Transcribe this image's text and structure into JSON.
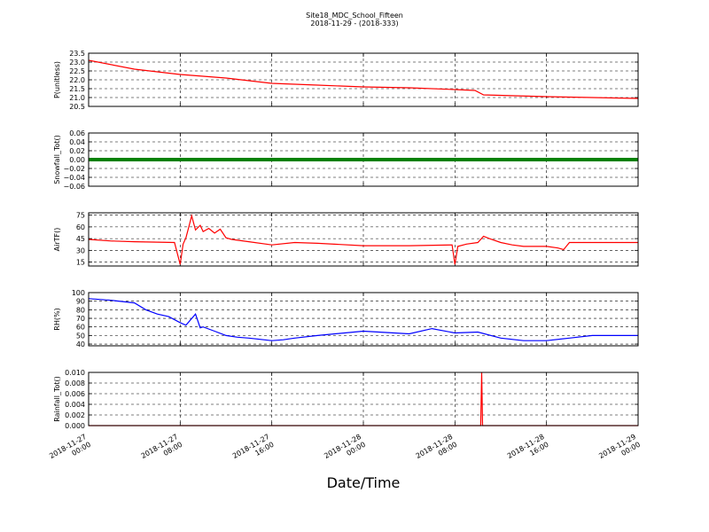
{
  "figure": {
    "title_line1": "Site18_MDC_School_Fifteen",
    "title_line2": "2018-11-29 - (2018-333)",
    "xlabel": "Date/Time"
  },
  "chart_data": [
    {
      "type": "line",
      "ylabel": "P(unitless)",
      "ylim": [
        20.5,
        23.5
      ],
      "yticks": [
        "23.5",
        "23.0",
        "22.5",
        "22.0",
        "21.5",
        "21.0",
        "20.5"
      ],
      "grid": true,
      "color": "#ff0000",
      "x": [
        "2018-11-27 00:00",
        "2018-11-27 04:00",
        "2018-11-27 08:00",
        "2018-11-27 12:00",
        "2018-11-27 16:00",
        "2018-11-27 20:00",
        "2018-11-28 00:00",
        "2018-11-28 04:00",
        "2018-11-28 08:00",
        "2018-11-28 09:45",
        "2018-11-28 10:30",
        "2018-11-28 16:00",
        "2018-11-28 20:00",
        "2018-11-29 00:00"
      ],
      "y": [
        23.1,
        22.6,
        22.3,
        22.1,
        21.8,
        21.7,
        21.6,
        21.55,
        21.45,
        21.4,
        21.15,
        21.05,
        21.0,
        20.95
      ]
    },
    {
      "type": "line",
      "ylabel": "Snowfall_Tot()",
      "ylim": [
        -0.06,
        0.06
      ],
      "yticks": [
        "0.06",
        "0.04",
        "0.02",
        "0.00",
        "−0.02",
        "−0.04",
        "−0.06"
      ],
      "grid": true,
      "color": "#008000",
      "x": [
        "2018-11-27 00:00",
        "2018-11-29 00:00"
      ],
      "y": [
        0.0,
        0.0
      ]
    },
    {
      "type": "line",
      "ylabel": "AirTF()",
      "ylim": [
        10,
        78
      ],
      "yticks": [
        "75",
        "60",
        "45",
        "30",
        "15"
      ],
      "grid": true,
      "color": "#ff0000",
      "x": [
        "2018-11-27 00:00",
        "2018-11-27 02:00",
        "2018-11-27 04:00",
        "2018-11-27 07:30",
        "2018-11-27 08:00",
        "2018-11-27 08:15",
        "2018-11-27 08:30",
        "2018-11-27 09:00",
        "2018-11-27 09:20",
        "2018-11-27 09:45",
        "2018-11-27 10:00",
        "2018-11-27 10:30",
        "2018-11-27 11:00",
        "2018-11-27 11:30",
        "2018-11-27 12:00",
        "2018-11-27 12:30",
        "2018-11-27 13:00",
        "2018-11-27 14:00",
        "2018-11-27 16:00",
        "2018-11-27 18:00",
        "2018-11-27 20:00",
        "2018-11-28 00:00",
        "2018-11-28 04:00",
        "2018-11-28 07:45",
        "2018-11-28 08:00",
        "2018-11-28 08:15",
        "2018-11-28 09:00",
        "2018-11-28 10:00",
        "2018-11-28 10:30",
        "2018-11-28 11:00",
        "2018-11-28 12:00",
        "2018-11-28 13:00",
        "2018-11-28 14:00",
        "2018-11-28 16:00",
        "2018-11-28 17:00",
        "2018-11-28 17:30",
        "2018-11-28 18:00",
        "2018-11-28 20:00",
        "2018-11-29 00:00"
      ],
      "y": [
        44,
        42,
        41,
        40,
        12,
        38,
        46,
        74,
        56,
        62,
        54,
        58,
        52,
        57,
        46,
        44,
        43,
        41,
        37,
        40,
        39,
        36,
        36,
        37,
        12,
        35,
        38,
        40,
        48,
        45,
        40,
        37,
        35,
        35,
        33,
        31,
        40,
        40,
        40
      ]
    },
    {
      "type": "line",
      "ylabel": "RH(%)",
      "ylim": [
        38,
        100
      ],
      "yticks": [
        "100",
        "90",
        "80",
        "70",
        "60",
        "50",
        "40"
      ],
      "grid": true,
      "color": "#0000ff",
      "x": [
        "2018-11-27 00:00",
        "2018-11-27 02:00",
        "2018-11-27 04:00",
        "2018-11-27 05:00",
        "2018-11-27 06:00",
        "2018-11-27 07:00",
        "2018-11-27 08:00",
        "2018-11-27 08:30",
        "2018-11-27 09:20",
        "2018-11-27 09:45",
        "2018-11-27 10:00",
        "2018-11-27 11:00",
        "2018-11-27 12:00",
        "2018-11-27 13:00",
        "2018-11-27 14:00",
        "2018-11-27 16:00",
        "2018-11-27 17:00",
        "2018-11-27 18:00",
        "2018-11-27 20:00",
        "2018-11-28 00:00",
        "2018-11-28 04:00",
        "2018-11-28 06:00",
        "2018-11-28 08:00",
        "2018-11-28 10:00",
        "2018-11-28 12:00",
        "2018-11-28 14:00",
        "2018-11-28 16:00",
        "2018-11-28 18:00",
        "2018-11-28 20:00",
        "2018-11-29 00:00"
      ],
      "y": [
        93,
        91,
        88,
        80,
        75,
        72,
        65,
        62,
        75,
        59,
        60,
        55,
        50,
        48,
        47,
        44,
        45,
        47,
        50,
        55,
        52,
        58,
        53,
        54,
        47,
        44,
        44,
        47,
        50,
        50
      ]
    },
    {
      "type": "line",
      "ylabel": "Rainfall_Tot()",
      "ylim": [
        0.0,
        0.01
      ],
      "yticks": [
        "0.010",
        "0.008",
        "0.006",
        "0.004",
        "0.002",
        "0.000"
      ],
      "grid": true,
      "color": "#ff0000",
      "x": [
        "2018-11-27 00:00",
        "2018-11-28 10:15",
        "2018-11-28 10:20",
        "2018-11-28 10:25",
        "2018-11-29 00:00"
      ],
      "y": [
        0.0,
        0.0,
        0.01,
        0.0,
        0.0
      ]
    }
  ],
  "xticks": [
    "2018-11-27\n00:00",
    "2018-11-27\n08:00",
    "2018-11-27\n16:00",
    "2018-11-28\n00:00",
    "2018-11-28\n08:00",
    "2018-11-28\n16:00",
    "2018-11-29\n00:00"
  ]
}
